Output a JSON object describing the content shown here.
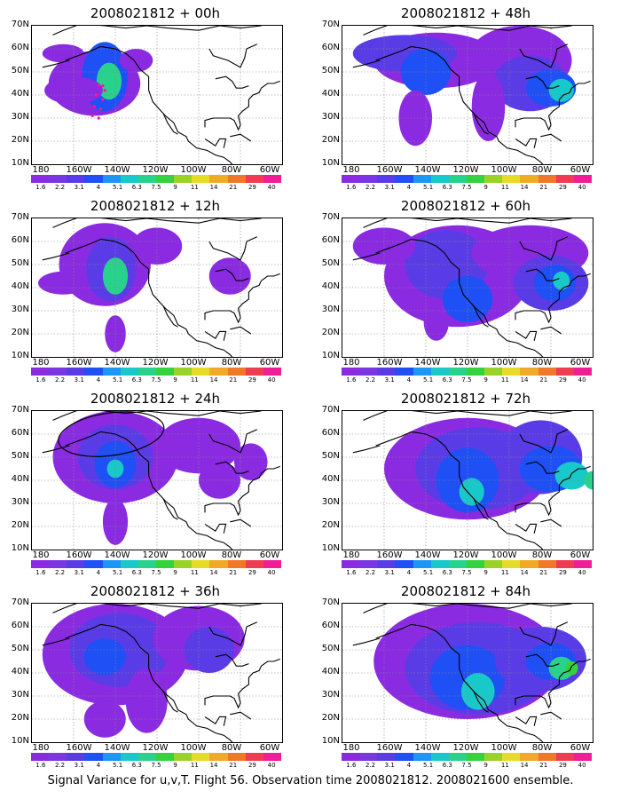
{
  "colorbar": {
    "labels": [
      "1.6",
      "2.2",
      "3.1",
      "4",
      "5.1",
      "6.3",
      "7.5",
      "9",
      "11",
      "14",
      "21",
      "29",
      "40"
    ],
    "colors": [
      "#8a2be2",
      "#7a36e0",
      "#5a3ce6",
      "#1e50f5",
      "#1e96f5",
      "#19c8c8",
      "#28d28c",
      "#34d23c",
      "#9bd228",
      "#e6dc28",
      "#f0aa28",
      "#f07828",
      "#f03c50",
      "#f01e96"
    ]
  },
  "lat_labels": [
    "70N",
    "60N",
    "50N",
    "40N",
    "30N",
    "20N",
    "10N"
  ],
  "lon_labels": [
    "180",
    "160W",
    "140W",
    "120W",
    "100W",
    "80W",
    "60W"
  ],
  "panels": [
    {
      "title": "2008021812 + 00h"
    },
    {
      "title": "2008021812 + 48h"
    },
    {
      "title": "2008021812 + 12h"
    },
    {
      "title": "2008021812 + 60h"
    },
    {
      "title": "2008021812 + 24h"
    },
    {
      "title": "2008021812 + 72h"
    },
    {
      "title": "2008021812 + 36h"
    },
    {
      "title": "2008021812 + 84h"
    }
  ],
  "caption": "Signal Variance for u,v,T. Flight 56. Observation time 2008021812. 2008021600 ensemble.",
  "legend_colors": {
    "land_outline": "#000000",
    "low": "#8a2be2",
    "mid": "#1e50f5",
    "high": "#28d28c",
    "flight_track": "#ff1493"
  }
}
